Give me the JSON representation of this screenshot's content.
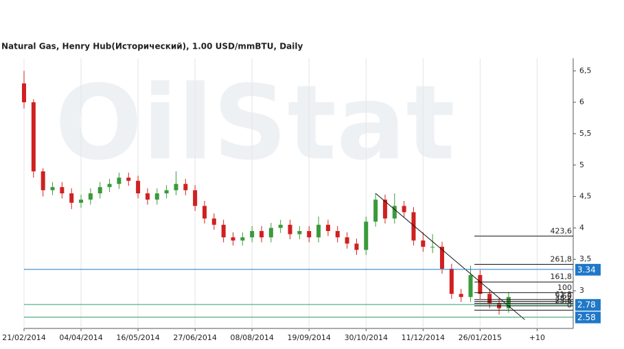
{
  "chart_data": {
    "type": "candlestick",
    "title": "Natural Gas, Henry Hub(Исторический), 1.00 USD/mmBTU, Daily",
    "watermark": "OilStat",
    "x": [
      0,
      5,
      10,
      15,
      20,
      25,
      30,
      35,
      40,
      45,
      50,
      55,
      60,
      65,
      70,
      75,
      80,
      85,
      90,
      95,
      100,
      105,
      110,
      115,
      120,
      125,
      130,
      135,
      140,
      145,
      150,
      155,
      160,
      165,
      170,
      175,
      180,
      185,
      190,
      195,
      200,
      205,
      210,
      215,
      220,
      225,
      230,
      235,
      240,
      245,
      250,
      255
    ],
    "open": [
      6.3,
      6.0,
      4.9,
      4.6,
      4.65,
      4.55,
      4.4,
      4.45,
      4.55,
      4.65,
      4.7,
      4.8,
      4.75,
      4.55,
      4.45,
      4.55,
      4.6,
      4.7,
      4.6,
      4.35,
      4.15,
      4.05,
      3.85,
      3.8,
      3.85,
      3.95,
      3.85,
      4.0,
      4.05,
      3.9,
      3.95,
      3.85,
      4.05,
      3.95,
      3.85,
      3.75,
      3.65,
      4.1,
      4.45,
      4.15,
      4.35,
      4.25,
      3.8,
      3.7,
      3.7,
      3.35,
      2.95,
      2.9,
      3.25,
      2.95,
      2.8,
      2.72
    ],
    "high": [
      6.5,
      6.05,
      4.95,
      4.73,
      4.73,
      4.63,
      4.53,
      4.63,
      4.73,
      4.78,
      4.88,
      4.88,
      4.83,
      4.63,
      4.63,
      4.68,
      4.9,
      4.78,
      4.68,
      4.43,
      4.23,
      4.13,
      3.93,
      3.93,
      4.03,
      4.03,
      4.08,
      4.13,
      4.13,
      4.03,
      4.03,
      4.18,
      4.13,
      4.03,
      3.93,
      3.83,
      4.18,
      4.55,
      4.53,
      4.55,
      4.43,
      4.33,
      3.93,
      3.9,
      3.78,
      3.43,
      3.03,
      3.4,
      3.33,
      3.03,
      2.88,
      2.98
    ],
    "low": [
      5.9,
      4.8,
      4.5,
      4.52,
      4.47,
      4.3,
      4.32,
      4.37,
      4.47,
      4.57,
      4.62,
      4.67,
      4.47,
      4.37,
      4.37,
      4.47,
      4.52,
      4.52,
      4.27,
      4.07,
      3.97,
      3.77,
      3.72,
      3.72,
      3.77,
      3.77,
      3.77,
      3.92,
      3.82,
      3.82,
      3.77,
      3.77,
      3.87,
      3.77,
      3.67,
      3.57,
      3.57,
      4.02,
      4.07,
      4.07,
      4.17,
      3.72,
      3.62,
      3.6,
      3.27,
      2.87,
      2.82,
      2.82,
      2.87,
      2.72,
      2.62,
      2.65
    ],
    "close": [
      6.0,
      4.9,
      4.6,
      4.65,
      4.55,
      4.4,
      4.45,
      4.55,
      4.65,
      4.7,
      4.8,
      4.75,
      4.55,
      4.45,
      4.55,
      4.6,
      4.7,
      4.6,
      4.35,
      4.15,
      4.05,
      3.85,
      3.8,
      3.85,
      3.95,
      3.85,
      4.0,
      4.05,
      3.9,
      3.95,
      3.85,
      4.05,
      3.95,
      3.85,
      3.75,
      3.65,
      4.1,
      4.45,
      4.15,
      4.35,
      4.25,
      3.8,
      3.7,
      3.7,
      3.35,
      2.95,
      2.9,
      3.25,
      2.95,
      2.8,
      2.72,
      2.9
    ],
    "up_color": "#3a9a3a",
    "down_color": "#d02020",
    "xlim": [
      0,
      289
    ],
    "xticks": [
      {
        "value": 0,
        "label": "21/02/2014"
      },
      {
        "value": 30,
        "label": "04/04/2014"
      },
      {
        "value": 60,
        "label": "16/05/2014"
      },
      {
        "value": 90,
        "label": "27/06/2014"
      },
      {
        "value": 120,
        "label": "08/08/2014"
      },
      {
        "value": 150,
        "label": "19/09/2014"
      },
      {
        "value": 180,
        "label": "30/10/2014"
      },
      {
        "value": 210,
        "label": "11/12/2014"
      },
      {
        "value": 240,
        "label": "26/01/2015"
      },
      {
        "value": 270,
        "label": "+10"
      }
    ],
    "ylim": [
      2.4,
      6.7
    ],
    "yticks": [
      3,
      {
        "value": 3.5,
        "label": "3,5"
      },
      4,
      {
        "value": 4.5,
        "label": "4,5"
      },
      5,
      {
        "value": 5.5,
        "label": "5,5"
      },
      6,
      {
        "value": 6.5,
        "label": "6,5"
      }
    ],
    "grid": "x",
    "levels": [
      {
        "value": 3.34,
        "label": "3.34",
        "color": "#1f78c8"
      },
      {
        "value": 2.78,
        "label": "2.78",
        "color": "#2e9e6a"
      },
      {
        "value": 2.58,
        "label": "2.58",
        "color": "#2e9e6a"
      }
    ],
    "fibonacci": {
      "start": 237,
      "levels": [
        {
          "value": 3.87,
          "label": "423,6"
        },
        {
          "value": 3.42,
          "label": "261,8"
        },
        {
          "value": 3.14,
          "label": "161,8"
        },
        {
          "value": 2.97,
          "label": "100"
        },
        {
          "value": 2.86,
          "label": "61,8"
        },
        {
          "value": 2.83,
          "label": "50"
        },
        {
          "value": 2.8,
          "label": "38,2"
        },
        {
          "value": 2.76,
          "label": "23,6"
        },
        {
          "value": 2.69,
          "label": "0"
        }
      ]
    },
    "trendline": {
      "x": [
        185,
        263.5
      ],
      "y": [
        4.55,
        2.54
      ]
    }
  }
}
